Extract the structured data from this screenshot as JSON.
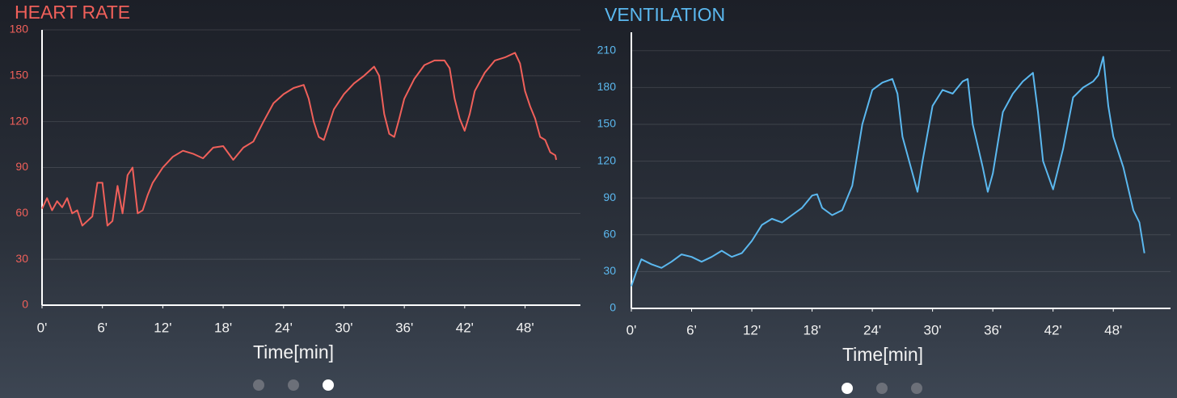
{
  "chart_data": [
    {
      "type": "line",
      "title": "HEART RATE",
      "x_label": "Time[min]",
      "color": "#f0605a",
      "grid": true,
      "xlim": [
        0,
        53.5
      ],
      "ylim": [
        0,
        180
      ],
      "xticks": [
        {
          "value": 0,
          "label": "0'"
        },
        {
          "value": 6,
          "label": "6'"
        },
        {
          "value": 12,
          "label": "12'"
        },
        {
          "value": 18,
          "label": "18'"
        },
        {
          "value": 24,
          "label": "24'"
        },
        {
          "value": 30,
          "label": "30'"
        },
        {
          "value": 36,
          "label": "36'"
        },
        {
          "value": 42,
          "label": "42'"
        },
        {
          "value": 48,
          "label": "48'"
        }
      ],
      "yticks": [
        0,
        30,
        60,
        90,
        120,
        150,
        180
      ],
      "x": [
        0,
        0.5,
        1,
        1.5,
        2,
        2.5,
        3,
        3.5,
        4,
        4.5,
        5,
        5.5,
        6,
        6.5,
        7,
        7.5,
        8,
        8.5,
        9,
        9.5,
        10,
        10.5,
        11,
        12,
        13,
        14,
        15,
        16,
        17,
        18,
        19,
        20,
        21,
        22,
        23,
        24,
        25,
        26,
        26.5,
        27,
        27.5,
        28,
        28.5,
        29,
        30,
        31,
        32,
        33,
        33.5,
        34,
        34.5,
        35,
        35.5,
        36,
        37,
        38,
        39,
        40,
        40.5,
        41,
        41.5,
        42,
        42.5,
        43,
        44,
        45,
        46,
        47,
        47.5,
        48,
        48.5,
        49,
        49.5,
        50,
        50.5,
        51,
        51.1
      ],
      "values": [
        63,
        70,
        62,
        68,
        64,
        70,
        60,
        62,
        52,
        55,
        58,
        80,
        80,
        52,
        55,
        78,
        60,
        85,
        90,
        60,
        62,
        72,
        80,
        90,
        97,
        101,
        99,
        96,
        103,
        104,
        95,
        103,
        107,
        120,
        132,
        138,
        142,
        144,
        135,
        120,
        110,
        108,
        118,
        128,
        138,
        145,
        150,
        156,
        150,
        125,
        112,
        110,
        122,
        135,
        148,
        157,
        160,
        160,
        155,
        135,
        122,
        114,
        125,
        140,
        152,
        160,
        162,
        165,
        158,
        140,
        130,
        122,
        110,
        108,
        100,
        98,
        95
      ]
    },
    {
      "type": "line",
      "title": "VENTILATION",
      "x_label": "Time[min]",
      "color": "#5bb8ef",
      "grid": true,
      "xlim": [
        0,
        53.7
      ],
      "ylim": [
        0,
        225
      ],
      "xticks": [
        {
          "value": 0,
          "label": "0'"
        },
        {
          "value": 6,
          "label": "6'"
        },
        {
          "value": 12,
          "label": "12'"
        },
        {
          "value": 18,
          "label": "18'"
        },
        {
          "value": 24,
          "label": "24'"
        },
        {
          "value": 30,
          "label": "30'"
        },
        {
          "value": 36,
          "label": "36'"
        },
        {
          "value": 42,
          "label": "42'"
        },
        {
          "value": 48,
          "label": "48'"
        }
      ],
      "yticks": [
        0,
        30,
        60,
        90,
        120,
        150,
        180,
        210
      ],
      "x": [
        0,
        0.5,
        1,
        2,
        3,
        4,
        5,
        6,
        7,
        8,
        9,
        10,
        11,
        12,
        13,
        14,
        15,
        16,
        17,
        18,
        18.5,
        19,
        20,
        21,
        22,
        23,
        24,
        25,
        26,
        26.5,
        27,
        28,
        28.5,
        29,
        30,
        31,
        32,
        33,
        33.5,
        34,
        35,
        35.5,
        36,
        37,
        38,
        39,
        40,
        40.5,
        41,
        42,
        43,
        44,
        45,
        46,
        46.5,
        47,
        47.5,
        48,
        49,
        50,
        50.6,
        51.1
      ],
      "values": [
        18,
        30,
        40,
        36,
        33,
        38,
        44,
        42,
        38,
        42,
        47,
        42,
        45,
        55,
        68,
        73,
        70,
        76,
        82,
        92,
        93,
        82,
        76,
        80,
        100,
        150,
        178,
        184,
        187,
        175,
        140,
        110,
        95,
        120,
        165,
        178,
        175,
        185,
        187,
        150,
        115,
        95,
        110,
        160,
        175,
        185,
        192,
        160,
        120,
        97,
        130,
        172,
        180,
        185,
        190,
        205,
        165,
        140,
        115,
        80,
        70,
        45
      ]
    }
  ]
}
